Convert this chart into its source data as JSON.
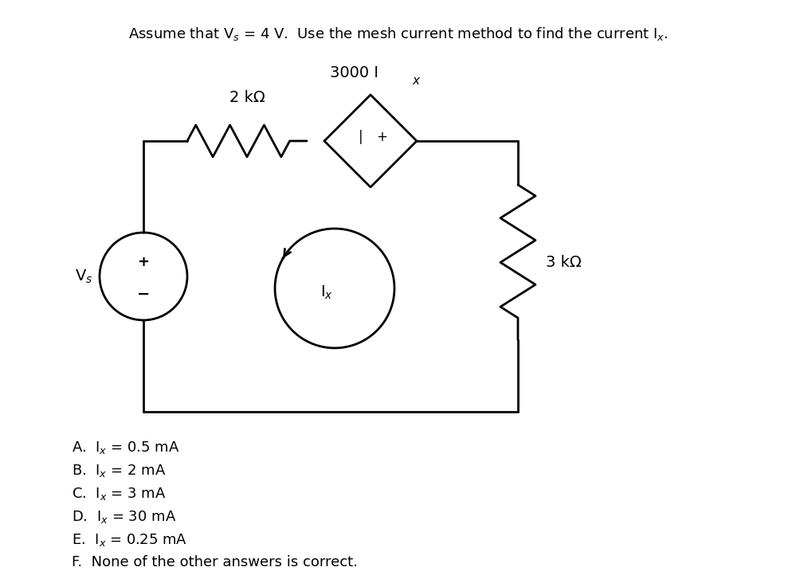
{
  "title": "Assume that V$_s$ = 4 V.  Use the mesh current method to find the current I$_x$.",
  "background_color": "#ffffff",
  "options": [
    "A.  I$_x$ = 0.5 mA",
    "B.  I$_x$ = 2 mA",
    "C.  I$_x$ = 3 mA",
    "D.  I$_x$ = 30 mA",
    "E.  I$_x$ = 0.25 mA",
    "F.  None of the other answers is correct."
  ],
  "label_2kohm": "2 kΩ",
  "label_3kohm": "3 kΩ",
  "label_dep_source": "3000 I",
  "label_Ix_dep": "x",
  "label_Ix": "I$_x$",
  "label_Vs": "V$_s$",
  "line_color": "#000000",
  "lw": 2.0
}
